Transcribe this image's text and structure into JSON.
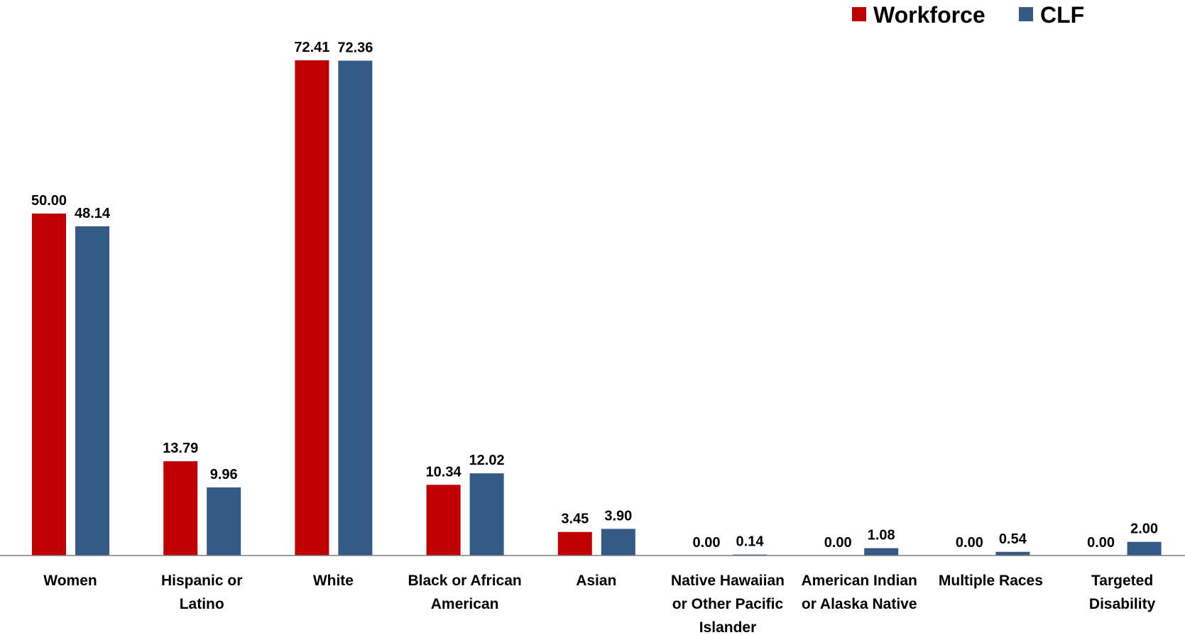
{
  "chart_data": {
    "type": "bar",
    "categories": [
      [
        "Women"
      ],
      [
        "Hispanic or",
        "Latino"
      ],
      [
        "White"
      ],
      [
        "Black or African",
        "American"
      ],
      [
        "Asian"
      ],
      [
        "Native Hawaiian",
        "or Other Pacific",
        "Islander"
      ],
      [
        "American Indian",
        "or Alaska Native"
      ],
      [
        "Multiple Races"
      ],
      [
        "Targeted",
        "Disability"
      ]
    ],
    "series": [
      {
        "name": "Workforce",
        "color": "#c00000",
        "values": [
          50.0,
          13.79,
          72.41,
          10.34,
          3.45,
          0.0,
          0.0,
          0.0,
          0.0
        ],
        "labels": [
          "50.00",
          "13.79",
          "72.41",
          "10.34",
          "3.45",
          "0.00",
          "0.00",
          "0.00",
          "0.00"
        ]
      },
      {
        "name": "CLF",
        "color": "#355a86",
        "values": [
          48.14,
          9.96,
          72.36,
          12.02,
          3.9,
          0.14,
          1.08,
          0.54,
          2.0
        ],
        "labels": [
          "48.14",
          "9.96",
          "72.36",
          "12.02",
          "3.90",
          "0.14",
          "1.08",
          "0.54",
          "2.00"
        ]
      }
    ],
    "ylim": [
      0,
      80
    ],
    "legend_position": "top-right",
    "grid": false
  }
}
